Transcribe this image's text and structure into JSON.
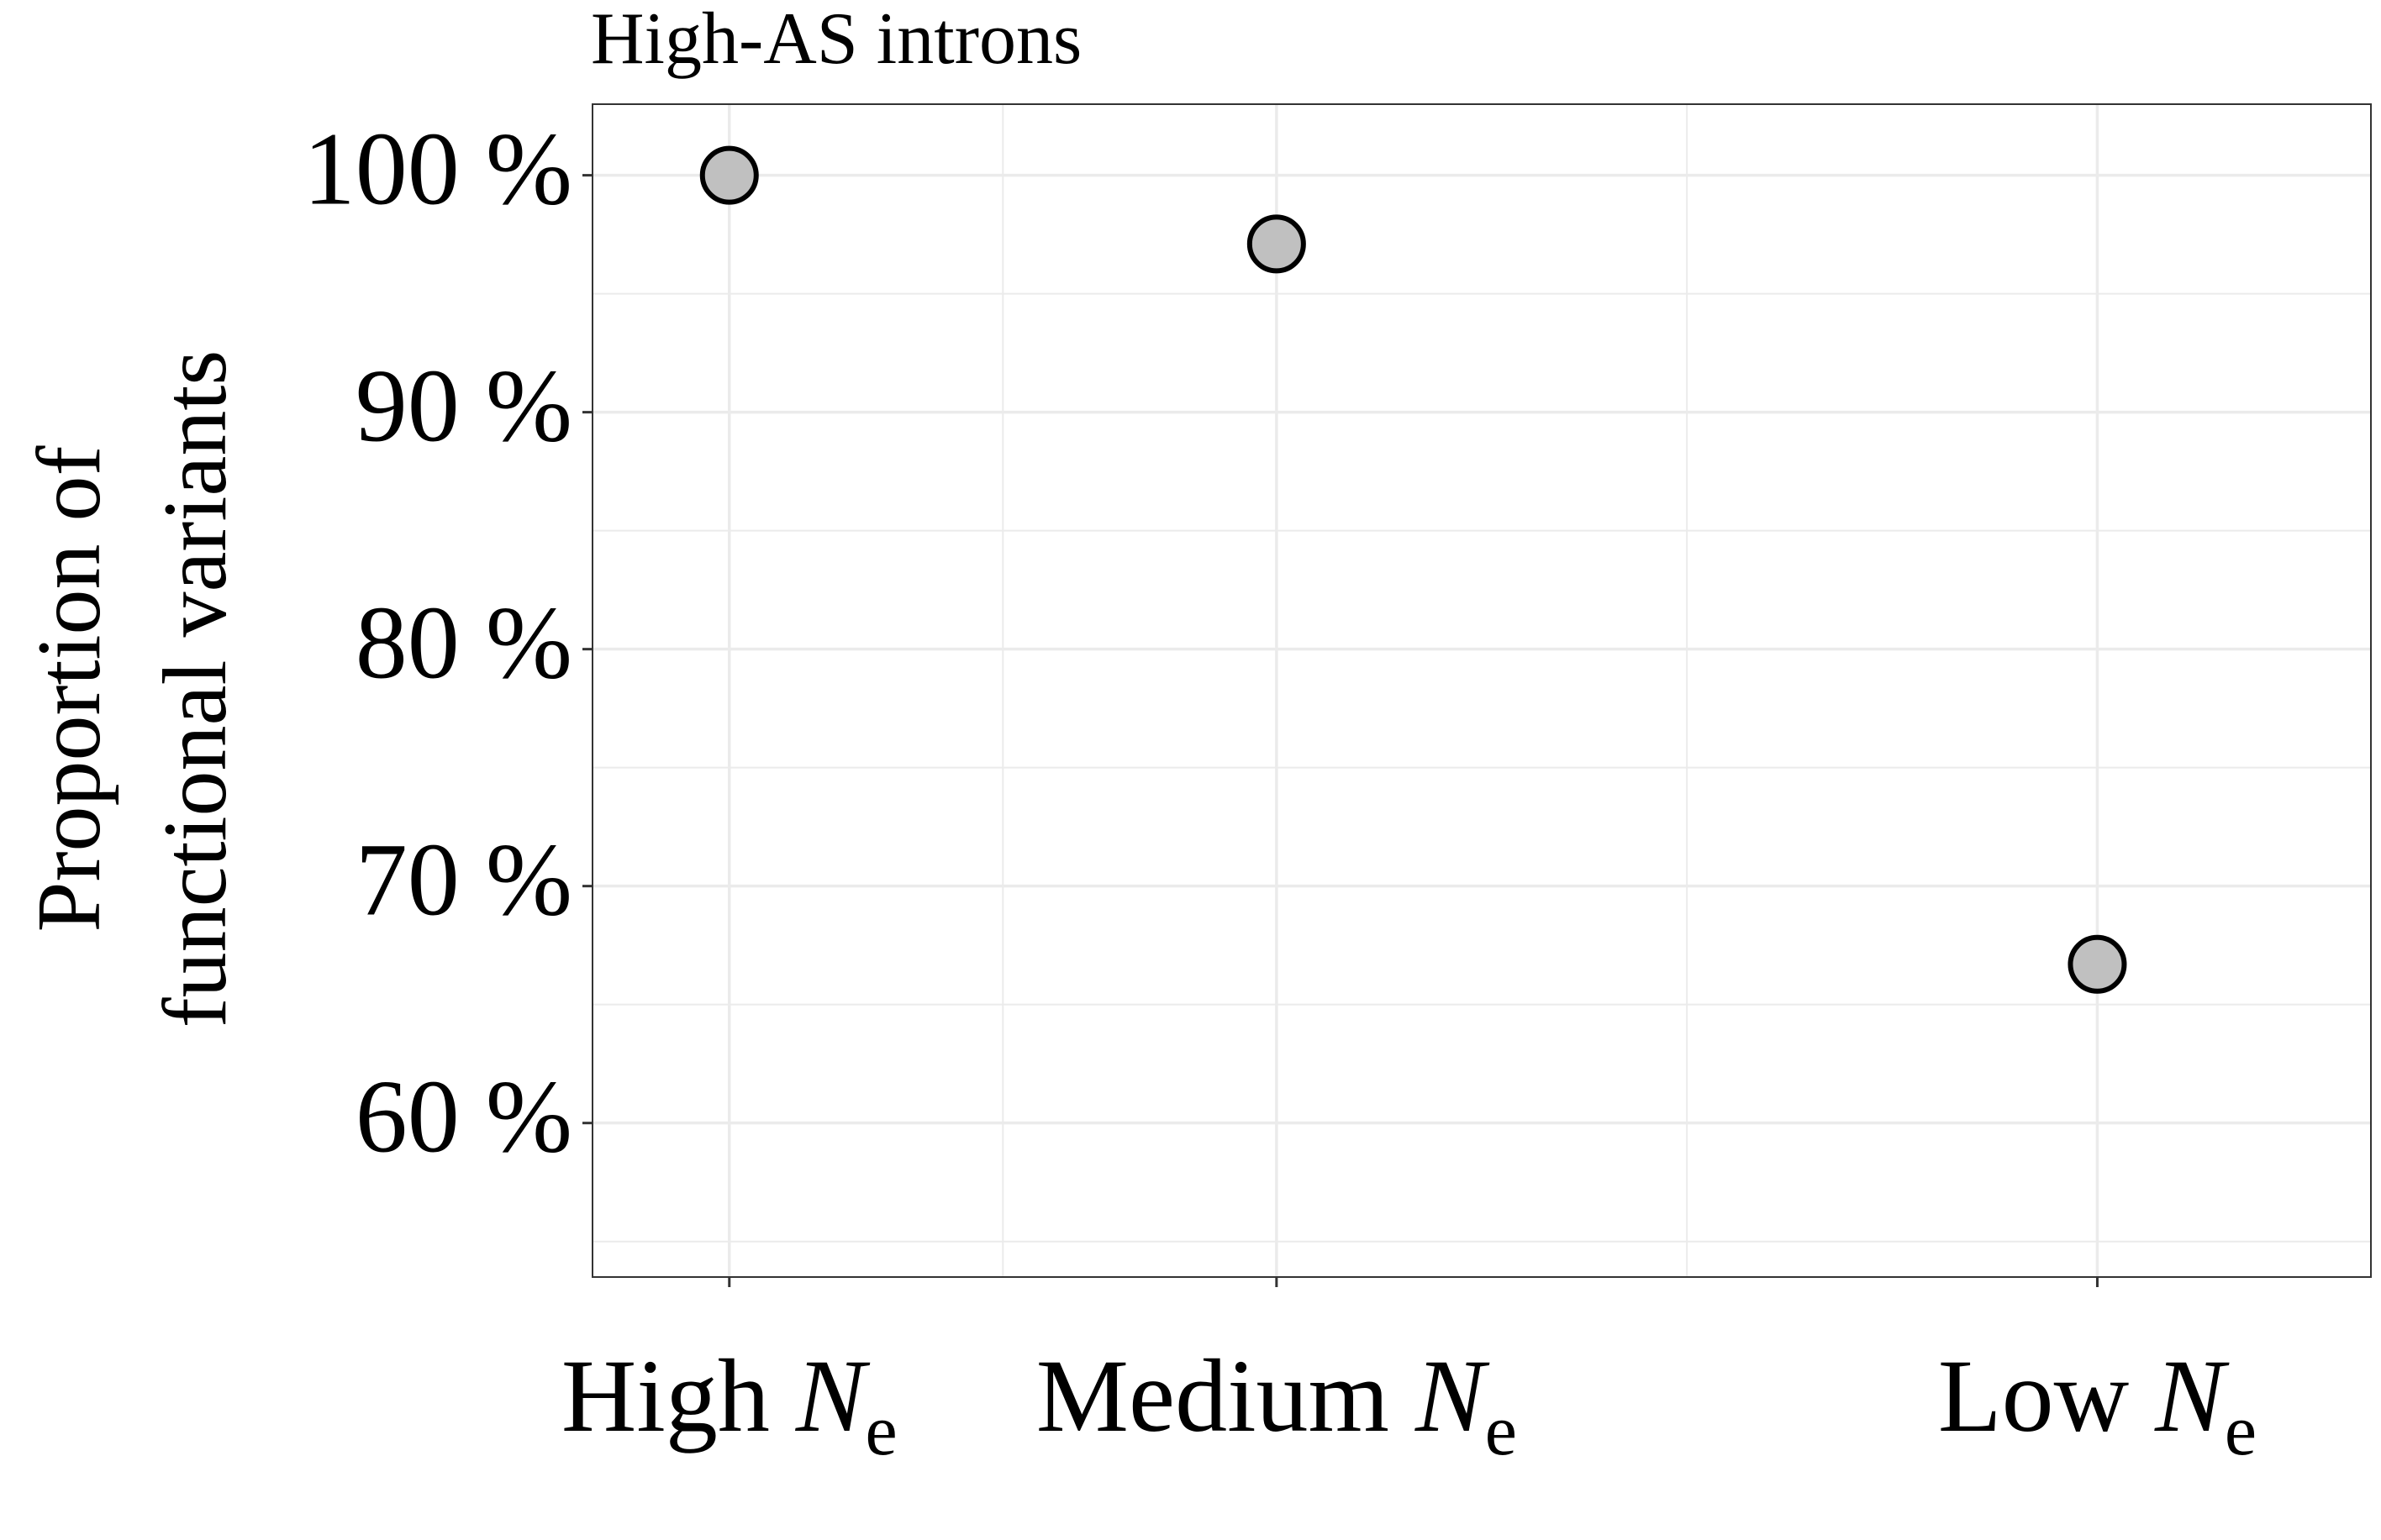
{
  "chart_data": {
    "type": "scatter",
    "title": "High-AS introns",
    "ylabel": [
      "Proportion of",
      "functional variants"
    ],
    "xlabel": "",
    "x_domain": [
      0.8,
      3.4
    ],
    "categories": [
      {
        "x": 1,
        "prefix": "High ",
        "var": "N",
        "sub": "e"
      },
      {
        "x": 1.8,
        "prefix": "Medium ",
        "var": "N",
        "sub": "e"
      },
      {
        "x": 3,
        "prefix": "Low ",
        "var": "N",
        "sub": "e"
      }
    ],
    "series": [
      {
        "points": [
          {
            "x": 1,
            "y": 100
          },
          {
            "x": 1.8,
            "y": 97.1
          },
          {
            "x": 3,
            "y": 66.7
          }
        ]
      }
    ],
    "ylim": [
      53.5,
      103
    ],
    "y_ticks": [
      60,
      70,
      80,
      90,
      100
    ],
    "y_tick_suffix": " %",
    "grid": true,
    "legend": "none",
    "colors": {
      "point_fill": "#c0c0c0",
      "point_stroke": "#000000",
      "grid": "#ebebeb",
      "border": "#333333"
    }
  }
}
